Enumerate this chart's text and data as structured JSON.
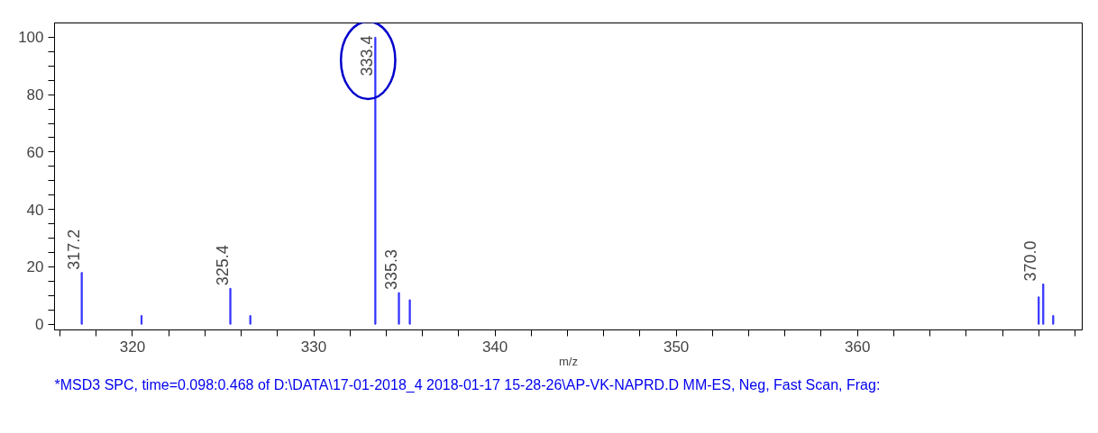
{
  "chart_data": {
    "type": "bar",
    "x": [
      317.2,
      320.5,
      325.4,
      326.5,
      333.4,
      334.7,
      335.3,
      370.0,
      370.25,
      370.8
    ],
    "values": [
      18,
      3,
      12.5,
      3,
      100,
      11,
      8.5,
      9.5,
      14,
      3
    ],
    "color": "#3333ff",
    "xlabel": "m/z",
    "xlim": [
      315.7,
      372.4
    ],
    "xticks": [
      {
        "value": 316,
        "label": null
      },
      {
        "value": 318,
        "label": null
      },
      320,
      {
        "value": 322,
        "label": null
      },
      {
        "value": 324,
        "label": null
      },
      {
        "value": 326,
        "label": null
      },
      {
        "value": 328,
        "label": null
      },
      330,
      {
        "value": 332,
        "label": null
      },
      {
        "value": 334,
        "label": null
      },
      {
        "value": 336,
        "label": null
      },
      {
        "value": 338,
        "label": null
      },
      340,
      {
        "value": 342,
        "label": null
      },
      {
        "value": 344,
        "label": null
      },
      {
        "value": 346,
        "label": null
      },
      {
        "value": 348,
        "label": null
      },
      350,
      {
        "value": 352,
        "label": null
      },
      {
        "value": 354,
        "label": null
      },
      {
        "value": 356,
        "label": null
      },
      {
        "value": 358,
        "label": null
      },
      360,
      {
        "value": 362,
        "label": null
      },
      {
        "value": 364,
        "label": null
      },
      {
        "value": 366,
        "label": null
      },
      {
        "value": 368,
        "label": null
      },
      {
        "value": 370,
        "label": null
      },
      {
        "value": 372,
        "label": null
      }
    ],
    "ylim": [
      -2,
      105
    ],
    "yticks": [
      0,
      {
        "value": 5,
        "label": null
      },
      {
        "value": 10,
        "label": null
      },
      {
        "value": 15,
        "label": null
      },
      20,
      {
        "value": 25,
        "label": null
      },
      {
        "value": 30,
        "label": null
      },
      {
        "value": 35,
        "label": null
      },
      40,
      {
        "value": 45,
        "label": null
      },
      {
        "value": 50,
        "label": null
      },
      {
        "value": 55,
        "label": null
      },
      60,
      {
        "value": 65,
        "label": null
      },
      {
        "value": 70,
        "label": null
      },
      {
        "value": 75,
        "label": null
      },
      80,
      {
        "value": 85,
        "label": null
      },
      {
        "value": 90,
        "label": null
      },
      {
        "value": 95,
        "label": null
      },
      100
    ],
    "grid": false,
    "annotations": [
      {
        "text": "317.2",
        "x": 317.2,
        "y": 18
      },
      {
        "text": "325.4",
        "x": 325.4,
        "y": 12.5
      },
      {
        "text": "333.4",
        "x": 333.4,
        "y": 100
      },
      {
        "text": "335.3",
        "x": 334.7,
        "y": 11
      },
      {
        "text": "370.0",
        "x": 370.0,
        "y": 14
      },
      "*MSD3 SPC, time=0.098:0.468 of D:\\DATA\\17-01-2018_4 2018-01-17 15-28-26\\AP-VK-NAPRD.D    MM-ES, Neg, Fast Scan, Frag:"
    ]
  }
}
